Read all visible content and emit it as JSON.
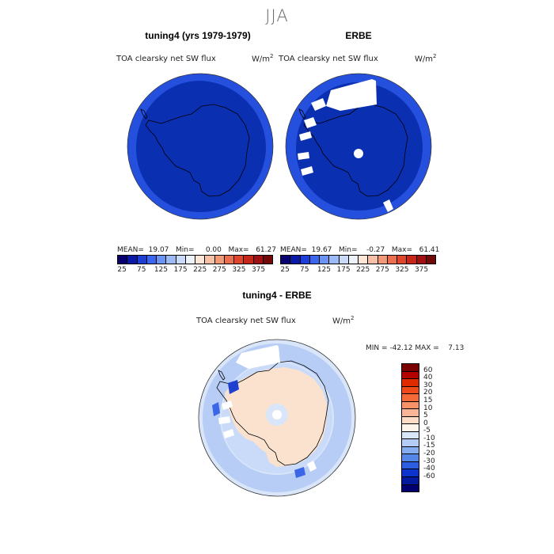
{
  "figure": {
    "season": "JJA"
  },
  "panels": {
    "left": {
      "title": "tuning4 (yrs 1979-1979)",
      "variable": "TOA clearsky net SW flux",
      "units": "W/m",
      "units_exp": "2",
      "stats": {
        "mean_label": "MEAN=",
        "mean": "19.07",
        "min_label": "Min=",
        "min": "0.00",
        "max_label": "Max=",
        "max": "61.27"
      }
    },
    "right": {
      "title": "ERBE",
      "variable": "TOA clearsky net SW flux",
      "units": "W/m",
      "units_exp": "2",
      "stats": {
        "mean_label": "MEAN=",
        "mean": "19.67",
        "min_label": "Min=",
        "min": "-0.27",
        "max_label": "Max=",
        "max": "61.41"
      }
    },
    "diff": {
      "title": "tuning4 - ERBE",
      "variable": "TOA clearsky net SW flux",
      "units": "W/m",
      "units_exp": "2",
      "stats": {
        "min_label": "MIN =",
        "min": "-42.12",
        "max_label": "MAX =",
        "max": "7.13"
      }
    }
  },
  "colorbars": {
    "absolute": {
      "ticks": [
        "25",
        "75",
        "125",
        "175",
        "225",
        "275",
        "325",
        "375"
      ],
      "colors": [
        "#08006e",
        "#0b1aa6",
        "#1e3ed8",
        "#3b66ee",
        "#6a93f2",
        "#9cbaf6",
        "#c8daf8",
        "#eef3fb",
        "#fde6d6",
        "#f8c1a6",
        "#f29a78",
        "#eb6f4f",
        "#e0452c",
        "#c7261a",
        "#a01010",
        "#720808"
      ]
    },
    "difference": {
      "labels": [
        "60",
        "40",
        "30",
        "20",
        "15",
        "10",
        "5",
        "0",
        "-5",
        "-10",
        "-15",
        "-20",
        "-30",
        "-40",
        "-60"
      ],
      "colors": [
        "#7a0000",
        "#b30000",
        "#e02a00",
        "#f04a18",
        "#f56a38",
        "#f89068",
        "#fab598",
        "#fcdcc6",
        "#fdf4ec",
        "#d8e6fa",
        "#b4cdf6",
        "#86acf0",
        "#5486e8",
        "#2b5ee0",
        "#0c34cc",
        "#041a9e",
        "#020070"
      ]
    }
  }
}
